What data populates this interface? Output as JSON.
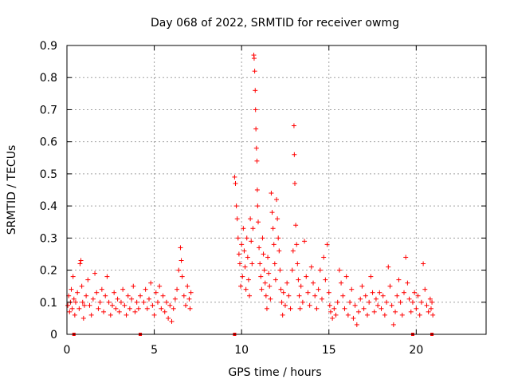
{
  "chart_data": {
    "type": "scatter",
    "title": "Day 068 of 2022, SRMTID for receiver owmg",
    "xlabel": "GPS time / hours",
    "ylabel": "SRMTID / TECUs",
    "xlim": [
      0,
      24
    ],
    "ylim": [
      0,
      0.9
    ],
    "xticks": [
      0,
      5,
      10,
      15,
      20
    ],
    "yticks": [
      0,
      0.1,
      0.2,
      0.3,
      0.4,
      0.5,
      0.6,
      0.7,
      0.8,
      0.9
    ],
    "xtick_labels": [
      "0",
      "5",
      "10",
      "15",
      "20"
    ],
    "ytick_labels": [
      "0",
      "0.1",
      "0.2",
      "0.3",
      "0.4",
      "0.5",
      "0.6",
      "0.7",
      "0.8",
      "0.9"
    ],
    "grid": true,
    "marker": "plus",
    "color": "#ff0000",
    "data_gap_markers_x": [
      0.4,
      4.2,
      9.6,
      19.8,
      20.9
    ],
    "series": [
      {
        "name": "SRMTID",
        "points": [
          [
            0.05,
            0.09
          ],
          [
            0.1,
            0.12
          ],
          [
            0.15,
            0.07
          ],
          [
            0.2,
            0.1
          ],
          [
            0.25,
            0.14
          ],
          [
            0.3,
            0.08
          ],
          [
            0.35,
            0.18
          ],
          [
            0.4,
            0.11
          ],
          [
            0.45,
            0.06
          ],
          [
            0.5,
            0.1
          ],
          [
            0.6,
            0.13
          ],
          [
            0.7,
            0.08
          ],
          [
            0.75,
            0.22
          ],
          [
            0.8,
            0.23
          ],
          [
            0.85,
            0.15
          ],
          [
            0.9,
            0.1
          ],
          [
            0.95,
            0.05
          ],
          [
            1.0,
            0.09
          ],
          [
            1.1,
            0.12
          ],
          [
            1.2,
            0.17
          ],
          [
            1.3,
            0.09
          ],
          [
            1.4,
            0.06
          ],
          [
            1.5,
            0.11
          ],
          [
            1.6,
            0.19
          ],
          [
            1.7,
            0.13
          ],
          [
            1.8,
            0.08
          ],
          [
            1.9,
            0.1
          ],
          [
            2.0,
            0.14
          ],
          [
            2.1,
            0.07
          ],
          [
            2.2,
            0.12
          ],
          [
            2.3,
            0.18
          ],
          [
            2.4,
            0.1
          ],
          [
            2.5,
            0.06
          ],
          [
            2.6,
            0.09
          ],
          [
            2.7,
            0.13
          ],
          [
            2.8,
            0.08
          ],
          [
            2.9,
            0.11
          ],
          [
            3.0,
            0.07
          ],
          [
            3.1,
            0.1
          ],
          [
            3.2,
            0.14
          ],
          [
            3.3,
            0.09
          ],
          [
            3.4,
            0.06
          ],
          [
            3.5,
            0.12
          ],
          [
            3.6,
            0.08
          ],
          [
            3.7,
            0.11
          ],
          [
            3.8,
            0.15
          ],
          [
            3.9,
            0.07
          ],
          [
            4.0,
            0.1
          ],
          [
            4.1,
            0.08
          ],
          [
            4.2,
            0.12
          ],
          [
            4.4,
            0.1
          ],
          [
            4.5,
            0.14
          ],
          [
            4.6,
            0.08
          ],
          [
            4.7,
            0.11
          ],
          [
            4.8,
            0.16
          ],
          [
            4.9,
            0.09
          ],
          [
            5.0,
            0.06
          ],
          [
            5.1,
            0.13
          ],
          [
            5.2,
            0.1
          ],
          [
            5.3,
            0.15
          ],
          [
            5.4,
            0.08
          ],
          [
            5.5,
            0.12
          ],
          [
            5.6,
            0.07
          ],
          [
            5.7,
            0.1
          ],
          [
            5.8,
            0.05
          ],
          [
            5.9,
            0.09
          ],
          [
            6.0,
            0.04
          ],
          [
            6.1,
            0.08
          ],
          [
            6.2,
            0.11
          ],
          [
            6.3,
            0.14
          ],
          [
            6.4,
            0.2
          ],
          [
            6.5,
            0.27
          ],
          [
            6.55,
            0.23
          ],
          [
            6.6,
            0.18
          ],
          [
            6.7,
            0.12
          ],
          [
            6.8,
            0.09
          ],
          [
            6.9,
            0.15
          ],
          [
            7.0,
            0.11
          ],
          [
            7.05,
            0.08
          ],
          [
            7.1,
            0.13
          ],
          [
            9.6,
            0.49
          ],
          [
            9.65,
            0.47
          ],
          [
            9.7,
            0.4
          ],
          [
            9.75,
            0.36
          ],
          [
            9.8,
            0.3
          ],
          [
            9.85,
            0.25
          ],
          [
            9.9,
            0.22
          ],
          [
            9.95,
            0.15
          ],
          [
            10.0,
            0.28
          ],
          [
            10.05,
            0.18
          ],
          [
            10.1,
            0.33
          ],
          [
            10.15,
            0.26
          ],
          [
            10.2,
            0.21
          ],
          [
            10.25,
            0.14
          ],
          [
            10.3,
            0.3
          ],
          [
            10.35,
            0.24
          ],
          [
            10.4,
            0.17
          ],
          [
            10.45,
            0.12
          ],
          [
            10.5,
            0.36
          ],
          [
            10.55,
            0.29
          ],
          [
            10.6,
            0.22
          ],
          [
            10.65,
            0.33
          ],
          [
            10.7,
            0.87
          ],
          [
            10.72,
            0.86
          ],
          [
            10.75,
            0.82
          ],
          [
            10.78,
            0.76
          ],
          [
            10.8,
            0.7
          ],
          [
            10.82,
            0.64
          ],
          [
            10.85,
            0.58
          ],
          [
            10.88,
            0.54
          ],
          [
            10.9,
            0.45
          ],
          [
            10.92,
            0.4
          ],
          [
            10.95,
            0.35
          ],
          [
            11.0,
            0.27
          ],
          [
            11.05,
            0.22
          ],
          [
            11.1,
            0.18
          ],
          [
            11.15,
            0.14
          ],
          [
            11.2,
            0.3
          ],
          [
            11.25,
            0.25
          ],
          [
            11.3,
            0.2
          ],
          [
            11.35,
            0.16
          ],
          [
            11.4,
            0.12
          ],
          [
            11.45,
            0.08
          ],
          [
            11.5,
            0.24
          ],
          [
            11.55,
            0.19
          ],
          [
            11.6,
            0.15
          ],
          [
            11.65,
            0.11
          ],
          [
            11.7,
            0.44
          ],
          [
            11.75,
            0.38
          ],
          [
            11.8,
            0.33
          ],
          [
            11.85,
            0.28
          ],
          [
            11.9,
            0.22
          ],
          [
            11.95,
            0.17
          ],
          [
            12.0,
            0.42
          ],
          [
            12.05,
            0.36
          ],
          [
            12.1,
            0.3
          ],
          [
            12.15,
            0.26
          ],
          [
            12.2,
            0.2
          ],
          [
            12.25,
            0.14
          ],
          [
            12.3,
            0.1
          ],
          [
            12.35,
            0.06
          ],
          [
            12.4,
            0.13
          ],
          [
            12.5,
            0.09
          ],
          [
            12.6,
            0.16
          ],
          [
            12.7,
            0.12
          ],
          [
            12.8,
            0.08
          ],
          [
            12.9,
            0.2
          ],
          [
            12.95,
            0.26
          ],
          [
            13.0,
            0.65
          ],
          [
            13.02,
            0.56
          ],
          [
            13.05,
            0.47
          ],
          [
            13.1,
            0.34
          ],
          [
            13.15,
            0.28
          ],
          [
            13.2,
            0.22
          ],
          [
            13.25,
            0.17
          ],
          [
            13.3,
            0.12
          ],
          [
            13.35,
            0.08
          ],
          [
            13.4,
            0.15
          ],
          [
            13.5,
            0.1
          ],
          [
            13.6,
            0.29
          ],
          [
            13.7,
            0.18
          ],
          [
            13.8,
            0.13
          ],
          [
            13.9,
            0.09
          ],
          [
            14.0,
            0.21
          ],
          [
            14.1,
            0.16
          ],
          [
            14.2,
            0.12
          ],
          [
            14.3,
            0.08
          ],
          [
            14.4,
            0.14
          ],
          [
            14.5,
            0.2
          ],
          [
            14.6,
            0.11
          ],
          [
            14.7,
            0.24
          ],
          [
            14.8,
            0.17
          ],
          [
            14.9,
            0.28
          ],
          [
            15.0,
            0.13
          ],
          [
            15.05,
            0.09
          ],
          [
            15.1,
            0.07
          ],
          [
            15.2,
            0.05
          ],
          [
            15.3,
            0.08
          ],
          [
            15.4,
            0.06
          ],
          [
            15.5,
            0.1
          ],
          [
            15.6,
            0.2
          ],
          [
            15.7,
            0.16
          ],
          [
            15.8,
            0.12
          ],
          [
            15.9,
            0.08
          ],
          [
            16.0,
            0.18
          ],
          [
            16.1,
            0.06
          ],
          [
            16.2,
            0.1
          ],
          [
            16.3,
            0.14
          ],
          [
            16.4,
            0.05
          ],
          [
            16.5,
            0.09
          ],
          [
            16.6,
            0.03
          ],
          [
            16.7,
            0.07
          ],
          [
            16.8,
            0.11
          ],
          [
            16.9,
            0.15
          ],
          [
            17.0,
            0.08
          ],
          [
            17.1,
            0.12
          ],
          [
            17.2,
            0.06
          ],
          [
            17.3,
            0.1
          ],
          [
            17.4,
            0.18
          ],
          [
            17.5,
            0.13
          ],
          [
            17.6,
            0.07
          ],
          [
            17.7,
            0.11
          ],
          [
            17.8,
            0.09
          ],
          [
            17.9,
            0.13
          ],
          [
            18.0,
            0.08
          ],
          [
            18.1,
            0.12
          ],
          [
            18.2,
            0.06
          ],
          [
            18.3,
            0.1
          ],
          [
            18.4,
            0.21
          ],
          [
            18.5,
            0.15
          ],
          [
            18.6,
            0.09
          ],
          [
            18.7,
            0.03
          ],
          [
            18.8,
            0.07
          ],
          [
            18.9,
            0.12
          ],
          [
            19.0,
            0.17
          ],
          [
            19.1,
            0.1
          ],
          [
            19.2,
            0.06
          ],
          [
            19.3,
            0.13
          ],
          [
            19.4,
            0.24
          ],
          [
            19.5,
            0.16
          ],
          [
            19.6,
            0.11
          ],
          [
            19.7,
            0.07
          ],
          [
            19.8,
            0.1
          ],
          [
            19.9,
            0.13
          ],
          [
            20.0,
            0.08
          ],
          [
            20.1,
            0.12
          ],
          [
            20.2,
            0.06
          ],
          [
            20.3,
            0.1
          ],
          [
            20.4,
            0.22
          ],
          [
            20.5,
            0.14
          ],
          [
            20.6,
            0.09
          ],
          [
            20.7,
            0.07
          ],
          [
            20.8,
            0.11
          ],
          [
            20.85,
            0.08
          ],
          [
            20.9,
            0.1
          ],
          [
            20.95,
            0.06
          ]
        ]
      }
    ]
  }
}
